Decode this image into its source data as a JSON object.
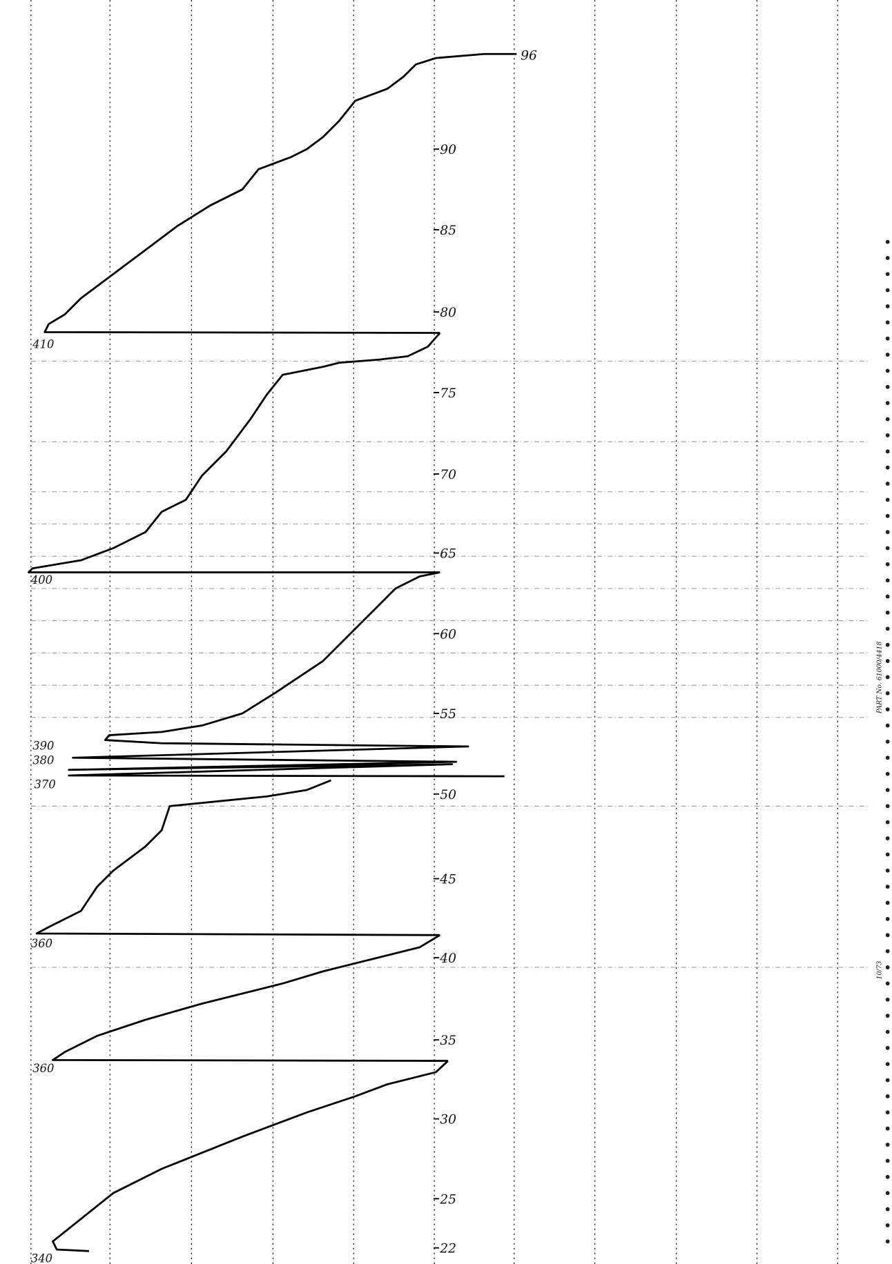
{
  "scale_labels": [
    "96",
    "90",
    "85",
    "80",
    "75",
    "70",
    "65",
    "60",
    "55",
    "50",
    "45",
    "40",
    "35",
    "30",
    "25",
    "22"
  ],
  "trace_labels": [
    "410",
    "400",
    "390",
    "380",
    "370",
    "360",
    "360",
    "340"
  ],
  "margin_text": [
    "PART No. 61000/4418",
    "10/73"
  ]
}
